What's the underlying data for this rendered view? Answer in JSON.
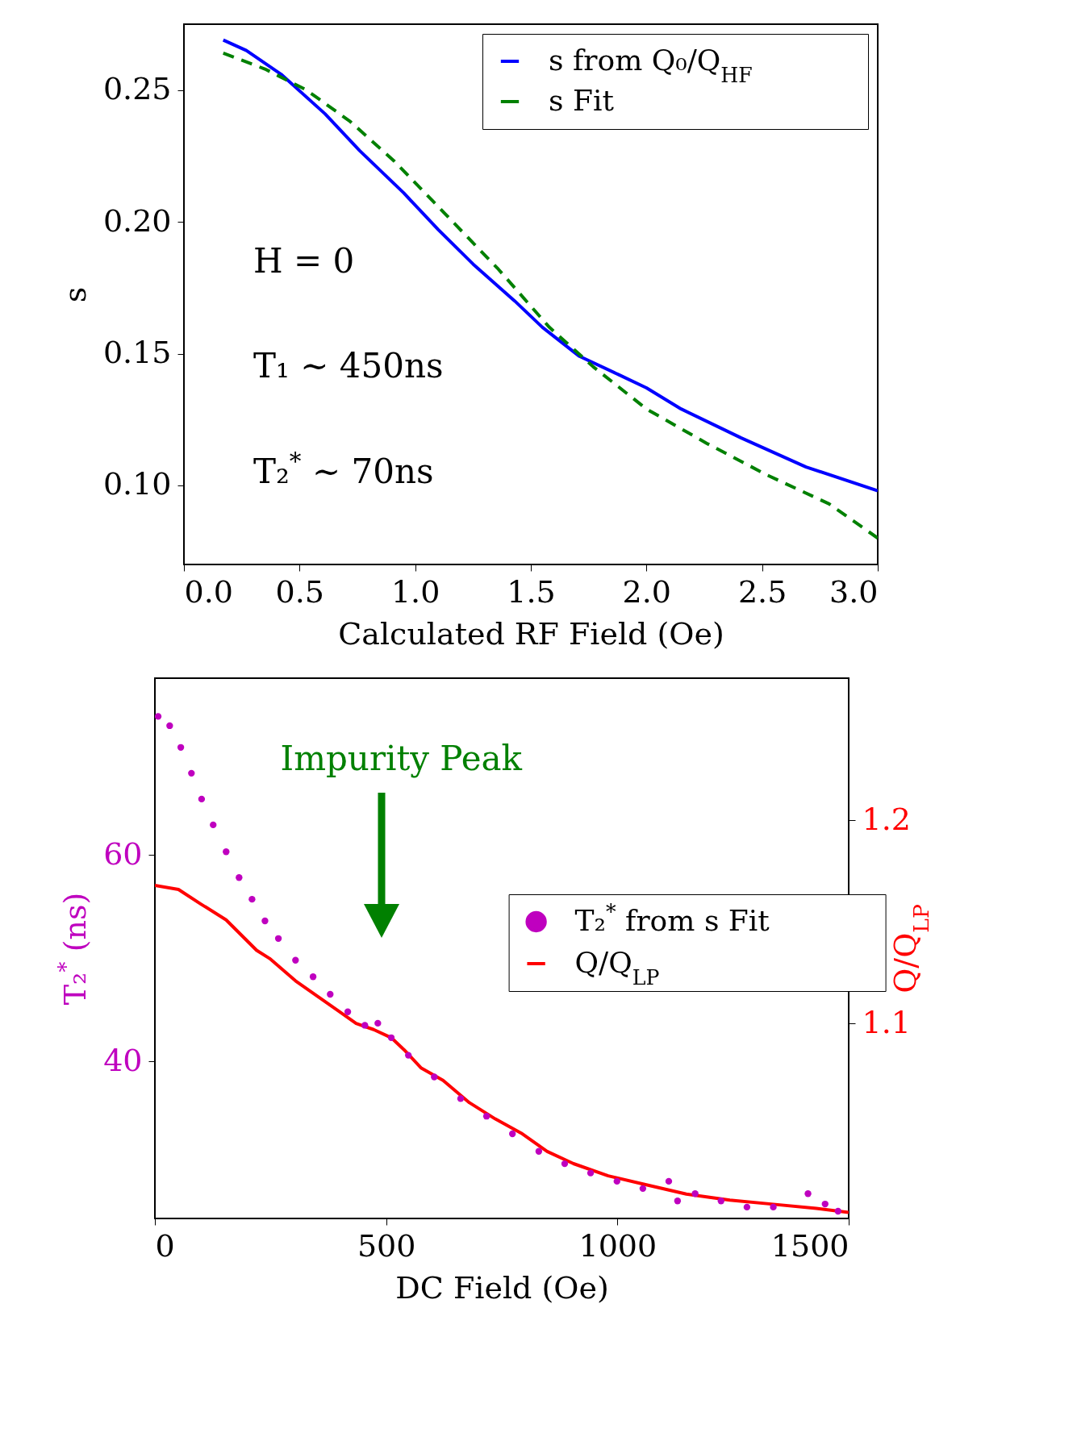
{
  "chart_data": [
    {
      "type": "line",
      "xlabel": "Calculated RF Field (Oe)",
      "ylabel": "s",
      "xlim": [
        0,
        3
      ],
      "xticks": [
        {
          "value": 0,
          "label": "0.0"
        },
        0.5,
        {
          "value": 1,
          "label": "1.0"
        },
        1.5,
        {
          "value": 2,
          "label": "2.0"
        },
        2.5,
        {
          "value": 3,
          "label": "3.0"
        }
      ],
      "ylim": [
        0.07,
        0.275
      ],
      "yticks": [
        {
          "value": 0.1,
          "label": "0.10"
        },
        0.15,
        {
          "value": 0.2,
          "label": "0.20"
        },
        0.25
      ],
      "legend": "top right",
      "annotations": [
        "H = 0",
        "T₁ ∼ 450ns",
        "T₂$^{*}$ ∼ 70ns"
      ],
      "series": [
        {
          "name": "s from Q₀/Q$_{HF}$",
          "color": "#0000ff",
          "line_style": "solid",
          "x": [
            0.17,
            0.27,
            0.42,
            0.61,
            0.76,
            0.95,
            1.1,
            1.25,
            1.43,
            1.55,
            1.71,
            1.88,
            2.0,
            2.15,
            2.41,
            2.69,
            3.0
          ],
          "values": [
            0.269,
            0.265,
            0.256,
            0.241,
            0.227,
            0.211,
            0.197,
            0.184,
            0.17,
            0.16,
            0.149,
            0.142,
            0.137,
            0.129,
            0.118,
            0.107,
            0.098
          ]
        },
        {
          "name": "s Fit",
          "color": "#008000",
          "line_style": "dashed",
          "x": [
            0.17,
            0.35,
            0.53,
            0.72,
            0.91,
            1.13,
            1.36,
            1.58,
            1.77,
            2.0,
            2.26,
            2.52,
            2.79,
            3.0
          ],
          "values": [
            0.264,
            0.258,
            0.25,
            0.238,
            0.223,
            0.203,
            0.182,
            0.16,
            0.145,
            0.129,
            0.116,
            0.104,
            0.093,
            0.08
          ]
        }
      ]
    },
    {
      "type": "line",
      "xlabel": "DC Field (Oe)",
      "ylabel": "T₂$^{*}$ (ns)",
      "y2label": "Q/Q$_{LP}$",
      "xlim": [
        0,
        1500
      ],
      "xticks": [
        0,
        500,
        1000,
        1500
      ],
      "ylim": [
        24.8,
        77.1
      ],
      "yticks": [
        40,
        60
      ],
      "y2lim": [
        1.004,
        1.27
      ],
      "y2ticks": [
        1.1,
        1.2
      ],
      "legend": "right",
      "annotations": [
        "Impurity Peak"
      ],
      "series": [
        {
          "name": "T₂$^{*}$ from s Fit",
          "type": "scatter",
          "marker": "circle",
          "color": "#bf00bf",
          "x": [
            7,
            32,
            56,
            79,
            101,
            126,
            154,
            182,
            210,
            238,
            267,
            304,
            342,
            379,
            417,
            454,
            482,
            511,
            548,
            604,
            661,
            717,
            773,
            830,
            886,
            942,
            999,
            1055,
            1111,
            1130,
            1168,
            1224,
            1280,
            1337,
            1412,
            1449,
            1477
          ],
          "values": [
            73.4,
            72.5,
            70.4,
            67.9,
            65.4,
            62.9,
            60.3,
            57.8,
            55.7,
            53.6,
            51.9,
            49.8,
            48.2,
            46.5,
            44.8,
            43.5,
            43.7,
            42.3,
            40.6,
            38.5,
            36.4,
            34.7,
            33.0,
            31.3,
            30.1,
            29.2,
            28.4,
            27.7,
            28.4,
            26.5,
            27.2,
            26.5,
            25.9,
            25.9,
            27.2,
            26.2,
            25.5
          ]
        },
        {
          "name": "Q/Q$_{LP}$",
          "axis": "y2",
          "color": "#ff0000",
          "line_style": "solid",
          "x": [
            0,
            51,
            98,
            154,
            220,
            248,
            304,
            360,
            398,
            435,
            473,
            511,
            539,
            576,
            623,
            680,
            736,
            792,
            848,
            905,
            980,
            1055,
            1149,
            1243,
            1337,
            1430,
            1500
          ],
          "values": [
            1.168,
            1.166,
            1.159,
            1.151,
            1.136,
            1.132,
            1.121,
            1.112,
            1.106,
            1.1,
            1.097,
            1.093,
            1.087,
            1.078,
            1.072,
            1.061,
            1.053,
            1.046,
            1.037,
            1.031,
            1.025,
            1.021,
            1.016,
            1.013,
            1.011,
            1.009,
            1.007
          ]
        }
      ]
    }
  ]
}
